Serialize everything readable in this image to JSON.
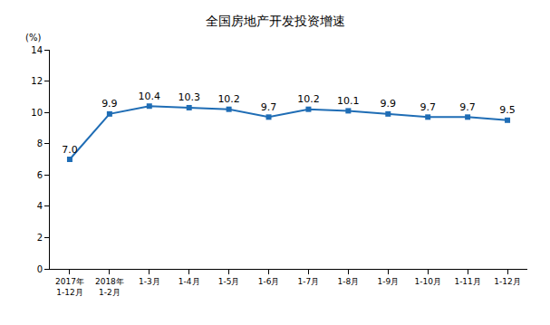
{
  "chart_data": {
    "type": "line",
    "title": "全国房地产开发投资增速",
    "y_label": "(%)",
    "categories": [
      "2017年\n1-12月",
      "2018年\n1-2月",
      "1-3月",
      "1-4月",
      "1-5月",
      "1-6月",
      "1-7月",
      "1-8月",
      "1-9月",
      "1-10月",
      "1-11月",
      "1-12月"
    ],
    "values": [
      7.0,
      9.9,
      10.4,
      10.3,
      10.2,
      9.7,
      10.2,
      10.1,
      9.9,
      9.7,
      9.7,
      9.5
    ],
    "value_labels": [
      "7.0",
      "9.9",
      "10.4",
      "10.3",
      "10.2",
      "9.7",
      "10.2",
      "10.1",
      "9.9",
      "9.7",
      "9.7",
      "9.5"
    ],
    "data_labels": true,
    "color": "#1f6db5",
    "marker": "square",
    "ylim": [
      0,
      14
    ],
    "yticks": [
      0,
      2,
      4,
      6,
      8,
      10,
      12,
      14
    ],
    "grid": false
  }
}
